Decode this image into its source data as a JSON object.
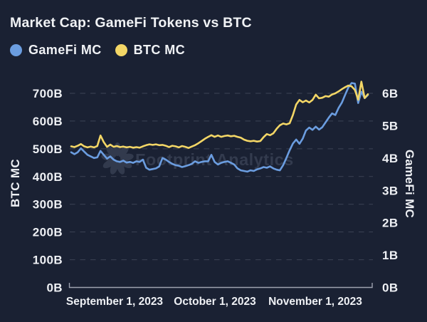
{
  "title": "Market Cap: GameFi Tokens vs BTC",
  "legend": [
    {
      "label": "GameFi MC",
      "color": "#6b9de0"
    },
    {
      "label": "BTC MC",
      "color": "#f3d666"
    }
  ],
  "watermark_text": "Footprint Analytics",
  "colors": {
    "background": "#1a2133",
    "text": "#f0f2f5",
    "grid": "#3c4355",
    "axis_line": "#9da2af",
    "gamefi_line": "#6b9de0",
    "btc_line": "#f3d666",
    "watermark": "#414a5e"
  },
  "chart_data": {
    "type": "line",
    "title": "Market Cap: GameFi Tokens vs BTC",
    "x_tick_labels": [
      "September 1, 2023",
      "October 1, 2023",
      "November 1, 2023"
    ],
    "left_axis": {
      "label": "BTC MC",
      "unit": "B",
      "range": [
        0,
        700
      ],
      "ticks": [
        0,
        100,
        200,
        300,
        400,
        500,
        600,
        700
      ]
    },
    "right_axis": {
      "label": "GameFi MC",
      "unit": "B",
      "range": [
        0,
        6
      ],
      "ticks": [
        0,
        1,
        2,
        3,
        4,
        5,
        6
      ]
    },
    "grid": "dashed-horizontal",
    "legend_position": "top-left",
    "series": [
      {
        "name": "GameFi MC",
        "axis": "right",
        "color": "#6b9de0",
        "values": [
          4.18,
          4.12,
          4.18,
          4.3,
          4.2,
          4.1,
          4.05,
          4.0,
          4.02,
          4.22,
          4.1,
          3.98,
          4.05,
          3.95,
          3.9,
          3.88,
          3.92,
          3.86,
          3.88,
          3.85,
          3.9,
          3.88,
          3.95,
          3.7,
          3.64,
          3.66,
          3.68,
          3.74,
          4.0,
          3.95,
          3.88,
          3.82,
          3.78,
          3.76,
          3.72,
          3.75,
          3.78,
          3.82,
          3.9,
          3.85,
          3.88,
          3.9,
          3.9,
          4.1,
          3.88,
          3.8,
          3.85,
          3.88,
          3.9,
          3.85,
          3.8,
          3.68,
          3.62,
          3.6,
          3.58,
          3.62,
          3.6,
          3.65,
          3.68,
          3.72,
          3.7,
          3.74,
          3.68,
          3.64,
          3.62,
          3.78,
          4.0,
          4.24,
          4.45,
          4.57,
          4.44,
          4.6,
          4.85,
          4.94,
          4.87,
          4.97,
          4.88,
          4.95,
          5.1,
          5.25,
          5.38,
          5.33,
          5.55,
          5.71,
          5.95,
          6.18,
          6.32,
          6.3,
          5.7,
          6.05,
          5.85,
          5.95
        ]
      },
      {
        "name": "BTC MC",
        "axis": "left",
        "color": "#f3d666",
        "values": [
          509,
          506,
          511,
          517,
          509,
          505,
          508,
          505,
          510,
          548,
          524,
          507,
          515,
          507,
          510,
          506,
          508,
          505,
          507,
          504,
          506,
          504,
          509,
          513,
          516,
          514,
          516,
          513,
          514,
          511,
          506,
          511,
          509,
          505,
          510,
          507,
          503,
          508,
          513,
          520,
          528,
          536,
          543,
          549,
          543,
          548,
          543,
          546,
          548,
          545,
          547,
          543,
          540,
          533,
          529,
          527,
          529,
          526,
          528,
          542,
          553,
          549,
          556,
          572,
          585,
          591,
          588,
          592,
          622,
          660,
          676,
          668,
          674,
          667,
          676,
          695,
          682,
          684,
          690,
          688,
          696,
          700,
          707,
          715,
          722,
          728,
          725,
          712,
          677,
          742,
          683,
          697
        ]
      }
    ]
  }
}
